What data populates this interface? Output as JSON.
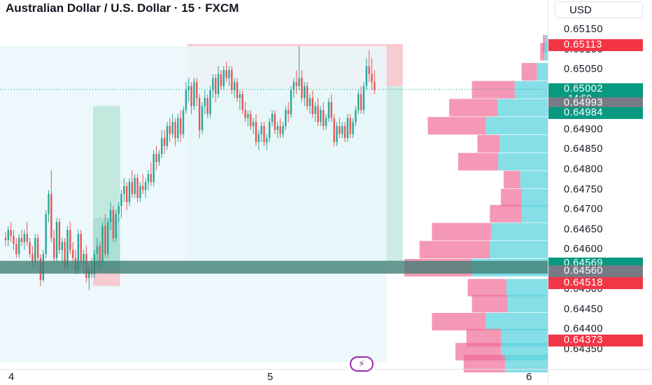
{
  "header": {
    "title": "Australian Dollar / U.S. Dollar · 15 · FXCM",
    "currency": "USD"
  },
  "colors": {
    "up": "#26a69a",
    "down": "#ef5350",
    "vp_up": "#5dd3df",
    "vp_down": "#f06c96"
  },
  "price_labels": [
    {
      "text": "0.65113",
      "price": 0.65113,
      "color": "#f23645"
    },
    {
      "text": "0.65002",
      "price": 0.65002,
      "color": "#089981"
    },
    {
      "text": "0.64993",
      "price": 0.64993,
      "color": "#787b86"
    },
    {
      "text": "0.64984",
      "price": 0.64984,
      "color": "#089981"
    },
    {
      "text": "0.64569",
      "price": 0.64569,
      "color": "#089981"
    },
    {
      "text": "0.64560",
      "price": 0.6456,
      "color": "#787b86"
    },
    {
      "text": "0.64518",
      "price": 0.64518,
      "color": "#f23645"
    },
    {
      "text": "0.64373",
      "price": 0.64373,
      "color": "#f23645"
    }
  ],
  "countdown": "14:59",
  "chart_data": {
    "type": "candlestick",
    "title": "Australian Dollar / U.S. Dollar · 15 · FXCM",
    "y_axis": {
      "min": 0.6432,
      "max": 0.6519,
      "ticks": [
        "0.65150",
        "0.65100",
        "0.65050",
        "0.64900",
        "0.64850",
        "0.64800",
        "0.64750",
        "0.64700",
        "0.64650",
        "0.64600",
        "0.64500",
        "0.64450",
        "0.64400",
        "0.64350"
      ]
    },
    "x_axis": {
      "ticks": [
        {
          "label": "4",
          "bar": 0
        },
        {
          "label": "5",
          "bar": 96
        },
        {
          "label": "6",
          "bar": 192
        }
      ],
      "bars_visible": 205
    },
    "candles": [
      [
        0.6463,
        0.64645,
        0.6461,
        0.64625
      ],
      [
        0.64625,
        0.6466,
        0.6461,
        0.6465
      ],
      [
        0.6465,
        0.6467,
        0.6462,
        0.64635
      ],
      [
        0.64635,
        0.6465,
        0.646,
        0.64615
      ],
      [
        0.64615,
        0.6463,
        0.6458,
        0.6459
      ],
      [
        0.6459,
        0.6464,
        0.6458,
        0.6463
      ],
      [
        0.6463,
        0.6465,
        0.6461,
        0.6462
      ],
      [
        0.6462,
        0.6465,
        0.646,
        0.6464
      ],
      [
        0.6464,
        0.6467,
        0.6461,
        0.6462
      ],
      [
        0.6462,
        0.6463,
        0.6458,
        0.6459
      ],
      [
        0.6459,
        0.6461,
        0.6456,
        0.6457
      ],
      [
        0.6457,
        0.6464,
        0.6456,
        0.6463
      ],
      [
        0.6463,
        0.6464,
        0.6457,
        0.6458
      ],
      [
        0.6458,
        0.6459,
        0.6451,
        0.64525
      ],
      [
        0.64525,
        0.646,
        0.6452,
        0.6459
      ],
      [
        0.6459,
        0.647,
        0.6458,
        0.6469
      ],
      [
        0.6469,
        0.6475,
        0.6467,
        0.6474
      ],
      [
        0.6474,
        0.648,
        0.6462,
        0.6463
      ],
      [
        0.6463,
        0.6465,
        0.6457,
        0.6458
      ],
      [
        0.6458,
        0.6468,
        0.6457,
        0.6467
      ],
      [
        0.6467,
        0.6468,
        0.6459,
        0.646
      ],
      [
        0.646,
        0.6463,
        0.6457,
        0.6462
      ],
      [
        0.6462,
        0.6463,
        0.6455,
        0.6456
      ],
      [
        0.6456,
        0.6466,
        0.6455,
        0.6465
      ],
      [
        0.6465,
        0.6467,
        0.6459,
        0.646
      ],
      [
        0.646,
        0.6462,
        0.6457,
        0.6458
      ],
      [
        0.6458,
        0.646,
        0.6454,
        0.6455
      ],
      [
        0.6455,
        0.6465,
        0.6454,
        0.6464
      ],
      [
        0.6464,
        0.6465,
        0.6456,
        0.6457
      ],
      [
        0.6457,
        0.646,
        0.6454,
        0.6459
      ],
      [
        0.6459,
        0.6461,
        0.6452,
        0.6453
      ],
      [
        0.6453,
        0.6456,
        0.645,
        0.6455
      ],
      [
        0.6455,
        0.6458,
        0.6453,
        0.6454
      ],
      [
        0.6454,
        0.646,
        0.6453,
        0.6459
      ],
      [
        0.6459,
        0.6463,
        0.6456,
        0.6461
      ],
      [
        0.6461,
        0.6462,
        0.6455,
        0.6457
      ],
      [
        0.6457,
        0.6467,
        0.6456,
        0.6466
      ],
      [
        0.6466,
        0.6469,
        0.6458,
        0.6459
      ],
      [
        0.6459,
        0.6468,
        0.6458,
        0.6467
      ],
      [
        0.6467,
        0.6472,
        0.6465,
        0.647
      ],
      [
        0.647,
        0.6471,
        0.6462,
        0.6463
      ],
      [
        0.6463,
        0.647,
        0.6462,
        0.6469
      ],
      [
        0.6469,
        0.6472,
        0.6467,
        0.6471
      ],
      [
        0.6471,
        0.6475,
        0.6468,
        0.6474
      ],
      [
        0.6474,
        0.6478,
        0.6472,
        0.6476
      ],
      [
        0.6476,
        0.6477,
        0.647,
        0.6472
      ],
      [
        0.6472,
        0.6478,
        0.6471,
        0.6477
      ],
      [
        0.6477,
        0.648,
        0.6473,
        0.6474
      ],
      [
        0.6474,
        0.6479,
        0.6473,
        0.6478
      ],
      [
        0.6478,
        0.6479,
        0.6472,
        0.6473
      ],
      [
        0.6473,
        0.6477,
        0.6472,
        0.6476
      ],
      [
        0.6476,
        0.6479,
        0.6474,
        0.6475
      ],
      [
        0.6475,
        0.6478,
        0.6473,
        0.6477
      ],
      [
        0.6477,
        0.648,
        0.6475,
        0.6479
      ],
      [
        0.6479,
        0.6482,
        0.6476,
        0.6477
      ],
      [
        0.6477,
        0.6485,
        0.6476,
        0.6484
      ],
      [
        0.6484,
        0.6486,
        0.648,
        0.6482
      ],
      [
        0.6482,
        0.6485,
        0.6481,
        0.6484
      ],
      [
        0.6484,
        0.649,
        0.6483,
        0.6488
      ],
      [
        0.6488,
        0.649,
        0.6484,
        0.6486
      ],
      [
        0.6486,
        0.6492,
        0.6485,
        0.6491
      ],
      [
        0.6491,
        0.6493,
        0.6487,
        0.6489
      ],
      [
        0.6489,
        0.6494,
        0.6488,
        0.6492
      ],
      [
        0.6492,
        0.6493,
        0.6486,
        0.6488
      ],
      [
        0.6488,
        0.6494,
        0.6487,
        0.6493
      ],
      [
        0.6493,
        0.6495,
        0.6487,
        0.6489
      ],
      [
        0.6489,
        0.6496,
        0.6488,
        0.6495
      ],
      [
        0.6495,
        0.6502,
        0.6494,
        0.65
      ],
      [
        0.65,
        0.6503,
        0.6497,
        0.6501
      ],
      [
        0.6501,
        0.6502,
        0.6494,
        0.6496
      ],
      [
        0.6496,
        0.6503,
        0.6495,
        0.6502
      ],
      [
        0.6502,
        0.6503,
        0.6496,
        0.6498
      ],
      [
        0.6498,
        0.6499,
        0.6488,
        0.649
      ],
      [
        0.649,
        0.6497,
        0.6489,
        0.6496
      ],
      [
        0.6496,
        0.65,
        0.6494,
        0.6498
      ],
      [
        0.6498,
        0.6499,
        0.6493,
        0.6494
      ],
      [
        0.6494,
        0.6501,
        0.6493,
        0.65
      ],
      [
        0.65,
        0.6504,
        0.6498,
        0.6503
      ],
      [
        0.6503,
        0.6504,
        0.6497,
        0.6499
      ],
      [
        0.6499,
        0.6506,
        0.6498,
        0.6504
      ],
      [
        0.6504,
        0.6505,
        0.65,
        0.6501
      ],
      [
        0.6501,
        0.6506,
        0.65,
        0.6505
      ],
      [
        0.6505,
        0.6507,
        0.6502,
        0.6503
      ],
      [
        0.6503,
        0.6506,
        0.6501,
        0.6505
      ],
      [
        0.6505,
        0.6506,
        0.6499,
        0.65
      ],
      [
        0.65,
        0.6503,
        0.6498,
        0.6502
      ],
      [
        0.6502,
        0.6503,
        0.6497,
        0.6498
      ],
      [
        0.6498,
        0.65,
        0.6495,
        0.6499
      ],
      [
        0.6499,
        0.65,
        0.6494,
        0.6495
      ],
      [
        0.6495,
        0.6497,
        0.6492,
        0.6493
      ],
      [
        0.6493,
        0.6495,
        0.6491,
        0.6494
      ],
      [
        0.6494,
        0.6495,
        0.649,
        0.6491
      ],
      [
        0.6491,
        0.6493,
        0.6489,
        0.6492
      ],
      [
        0.6492,
        0.6494,
        0.6486,
        0.6487
      ],
      [
        0.6487,
        0.649,
        0.6485,
        0.6489
      ],
      [
        0.6489,
        0.6492,
        0.6487,
        0.6491
      ],
      [
        0.6491,
        0.6492,
        0.6486,
        0.6487
      ],
      [
        0.6487,
        0.6489,
        0.6485,
        0.6488
      ],
      [
        0.6488,
        0.6493,
        0.6487,
        0.6492
      ],
      [
        0.6492,
        0.6495,
        0.6491,
        0.6494
      ],
      [
        0.6494,
        0.6495,
        0.6489,
        0.649
      ],
      [
        0.649,
        0.6492,
        0.6488,
        0.6491
      ],
      [
        0.6491,
        0.6493,
        0.6488,
        0.6489
      ],
      [
        0.6489,
        0.6492,
        0.6488,
        0.6491
      ],
      [
        0.6491,
        0.6496,
        0.649,
        0.6495
      ],
      [
        0.6495,
        0.6497,
        0.6492,
        0.6494
      ],
      [
        0.6494,
        0.6501,
        0.6493,
        0.65
      ],
      [
        0.65,
        0.6503,
        0.6498,
        0.6502
      ],
      [
        0.6502,
        0.6505,
        0.6499,
        0.6501
      ],
      [
        0.6501,
        0.6511,
        0.65,
        0.6503
      ],
      [
        0.6503,
        0.6505,
        0.6497,
        0.6498
      ],
      [
        0.6498,
        0.6502,
        0.6496,
        0.6501
      ],
      [
        0.6501,
        0.6502,
        0.6495,
        0.6496
      ],
      [
        0.6496,
        0.6499,
        0.6494,
        0.6498
      ],
      [
        0.6498,
        0.65,
        0.6493,
        0.6494
      ],
      [
        0.6494,
        0.6497,
        0.6492,
        0.6496
      ],
      [
        0.6496,
        0.6498,
        0.6491,
        0.6492
      ],
      [
        0.6492,
        0.6496,
        0.6491,
        0.6495
      ],
      [
        0.6495,
        0.6497,
        0.649,
        0.6491
      ],
      [
        0.6491,
        0.6494,
        0.649,
        0.6493
      ],
      [
        0.6493,
        0.6498,
        0.6492,
        0.6497
      ],
      [
        0.6497,
        0.6499,
        0.6492,
        0.6493
      ],
      [
        0.6493,
        0.6494,
        0.6486,
        0.6487
      ],
      [
        0.6487,
        0.6492,
        0.6486,
        0.6491
      ],
      [
        0.6491,
        0.6493,
        0.6488,
        0.6489
      ],
      [
        0.6489,
        0.6492,
        0.6488,
        0.6491
      ],
      [
        0.6491,
        0.6492,
        0.6487,
        0.6488
      ],
      [
        0.6488,
        0.6494,
        0.6487,
        0.6493
      ],
      [
        0.6493,
        0.6494,
        0.6488,
        0.6489
      ],
      [
        0.6489,
        0.6493,
        0.6488,
        0.6492
      ],
      [
        0.6492,
        0.6496,
        0.6491,
        0.6495
      ],
      [
        0.6495,
        0.65,
        0.6494,
        0.6499
      ],
      [
        0.6499,
        0.6501,
        0.6494,
        0.6495
      ],
      [
        0.6495,
        0.6502,
        0.6494,
        0.6501
      ],
      [
        0.6501,
        0.6508,
        0.65,
        0.6506
      ],
      [
        0.6506,
        0.651,
        0.6502,
        0.6504
      ],
      [
        0.6504,
        0.6508,
        0.65,
        0.6502
      ],
      [
        0.6502,
        0.6505,
        0.6499,
        0.65
      ]
    ],
    "price_line": 0.65002,
    "zones": [
      {
        "name": "red-supply-zone",
        "x0": 68,
        "x1": 148,
        "y_top": 0.65115,
        "y_bottom": 0.6501,
        "color": "#f7c5cc"
      },
      {
        "name": "green-target-zone",
        "x0": 68,
        "x1": 148,
        "y_top": 0.6501,
        "y_bottom": 0.6457,
        "color": "#c7ebe1"
      },
      {
        "name": "blue-range-zone",
        "x0": 0,
        "x1": 142,
        "y_top": 0.6511,
        "y_bottom": 0.6432,
        "color": "#eaf7fb"
      },
      {
        "name": "small-green-zone",
        "x0": 33,
        "x1": 43,
        "y_top": 0.6496,
        "y_bottom": 0.6468,
        "color": "#bfe5da"
      },
      {
        "name": "small-green-zone-lower",
        "x0": 33,
        "x1": 43,
        "y_top": 0.6468,
        "y_bottom": 0.6455,
        "color": "#a6dccf"
      },
      {
        "name": "small-red-zone",
        "x0": 33,
        "x1": 43,
        "y_top": 0.6455,
        "y_bottom": 0.6451,
        "color": "#f5c6cd"
      }
    ],
    "horizontal_band": {
      "y_top": 0.64573,
      "y_bottom": 0.64541,
      "color": "#3e7d73"
    },
    "volume_profile": [
      {
        "price": 0.65115,
        "up": 4,
        "down": 3
      },
      {
        "price": 0.65095,
        "up": 5,
        "down": 6
      },
      {
        "price": 0.65045,
        "up": 16,
        "down": 22
      },
      {
        "price": 0.65,
        "up": 48,
        "down": 62
      },
      {
        "price": 0.64955,
        "up": 73,
        "down": 70
      },
      {
        "price": 0.6491,
        "up": 90,
        "down": 84
      },
      {
        "price": 0.64865,
        "up": 70,
        "down": 32
      },
      {
        "price": 0.6482,
        "up": 72,
        "down": 58
      },
      {
        "price": 0.64775,
        "up": 40,
        "down": 24
      },
      {
        "price": 0.6473,
        "up": 38,
        "down": 30
      },
      {
        "price": 0.6469,
        "up": 38,
        "down": 46
      },
      {
        "price": 0.64645,
        "up": 82,
        "down": 86
      },
      {
        "price": 0.646,
        "up": 84,
        "down": 102
      },
      {
        "price": 0.64555,
        "up": 110,
        "down": 98
      },
      {
        "price": 0.64505,
        "up": 60,
        "down": 56
      },
      {
        "price": 0.64465,
        "up": 58,
        "down": 52
      },
      {
        "price": 0.6442,
        "up": 90,
        "down": 78
      },
      {
        "price": 0.6438,
        "up": 68,
        "down": 50
      },
      {
        "price": 0.64345,
        "up": 68,
        "down": 66
      },
      {
        "price": 0.64315,
        "up": 62,
        "down": 60
      }
    ]
  }
}
